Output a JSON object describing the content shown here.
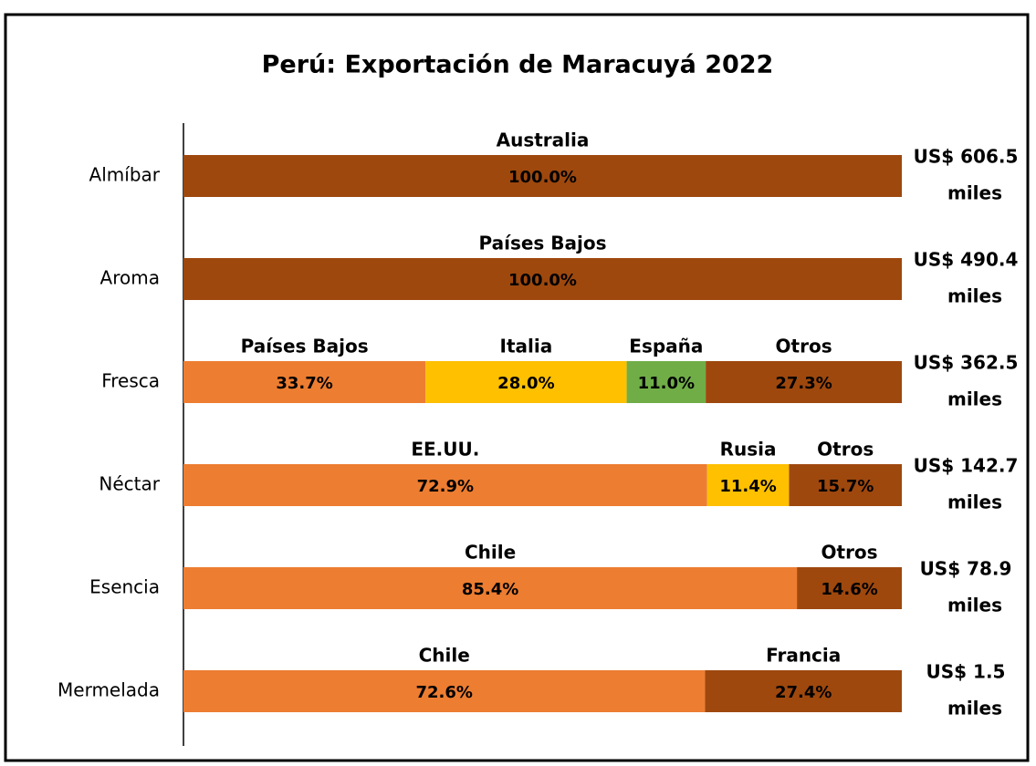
{
  "chart_data": {
    "type": "bar",
    "orientation": "horizontal",
    "stacked": true,
    "title": "Perú: Exportación de Maracuyá 2022",
    "xlim": [
      0,
      100
    ],
    "rows": [
      {
        "category": "Almíbar",
        "total": "US$ 606.5",
        "unit": "miles",
        "segments": [
          {
            "name": "Australia",
            "value": 100.0,
            "value_label": "100.0%",
            "color": "#9e480e"
          }
        ]
      },
      {
        "category": "Aroma",
        "total": "US$ 490.4",
        "unit": "miles",
        "segments": [
          {
            "name": "Países Bajos",
            "value": 100.0,
            "value_label": "100.0%",
            "color": "#9e480e"
          }
        ]
      },
      {
        "category": "Fresca",
        "total": "US$ 362.5",
        "unit": "miles",
        "segments": [
          {
            "name": "Países Bajos",
            "value": 33.7,
            "value_label": "33.7%",
            "color": "#ed7d31"
          },
          {
            "name": "Italia",
            "value": 28.0,
            "value_label": "28.0%",
            "color": "#ffc000"
          },
          {
            "name": "España",
            "value": 11.0,
            "value_label": "11.0%",
            "color": "#70ad47"
          },
          {
            "name": "Otros",
            "value": 27.3,
            "value_label": "27.3%",
            "color": "#9e480e"
          }
        ]
      },
      {
        "category": "Néctar",
        "total": "US$ 142.7",
        "unit": "miles",
        "segments": [
          {
            "name": "EE.UU.",
            "value": 72.9,
            "value_label": "72.9%",
            "color": "#ed7d31"
          },
          {
            "name": "Rusia",
            "value": 11.4,
            "value_label": "11.4%",
            "color": "#ffc000"
          },
          {
            "name": "Otros",
            "value": 15.7,
            "value_label": "15.7%",
            "color": "#9e480e"
          }
        ]
      },
      {
        "category": "Esencia",
        "total": "US$ 78.9",
        "unit": "miles",
        "segments": [
          {
            "name": "Chile",
            "value": 85.4,
            "value_label": "85.4%",
            "color": "#ed7d31"
          },
          {
            "name": "Otros",
            "value": 14.6,
            "value_label": "14.6%",
            "color": "#9e480e"
          }
        ]
      },
      {
        "category": "Mermelada",
        "total": "US$ 1.5",
        "unit": "miles",
        "segments": [
          {
            "name": "Chile",
            "value": 72.6,
            "value_label": "72.6%",
            "color": "#ed7d31"
          },
          {
            "name": "Francia",
            "value": 27.4,
            "value_label": "27.4%",
            "color": "#9e480e"
          }
        ]
      }
    ]
  }
}
